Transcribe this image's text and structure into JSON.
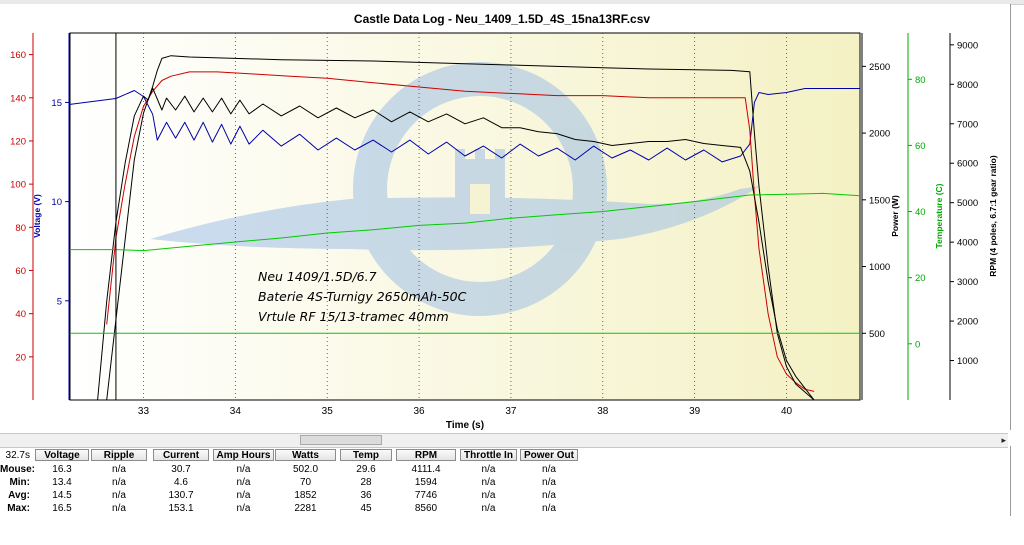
{
  "chart_data": {
    "type": "line",
    "title": "Castle Data Log - Neu_1409_1.5D_4S_15na13RF.csv",
    "xlabel": "Time (s)",
    "xlim": [
      32.2,
      40.8
    ],
    "x_ticks": [
      "33",
      "34",
      "35",
      "36",
      "37",
      "38",
      "39",
      "40"
    ],
    "cursor_x": 32.7,
    "annotation": [
      "Neu 1409/1.5D/6.7",
      "Baterie 4S-Turnigy 2650mAh-50C",
      "Vrtule RF 15/13-tramec 40mm"
    ],
    "axes": {
      "current": {
        "ylim": [
          0,
          170
        ],
        "ticks": [
          "20",
          "40",
          "60",
          "80",
          "100",
          "120",
          "140",
          "160"
        ],
        "color": "#cc0000"
      },
      "voltage": {
        "label": "Voltage (V)",
        "ylim": [
          0,
          18.5
        ],
        "ticks": [
          "5",
          "10",
          "15"
        ],
        "color": "#0000aa"
      },
      "power": {
        "label": "Power (W)",
        "ylim": [
          0,
          2750
        ],
        "ticks": [
          "500",
          "1000",
          "1500",
          "2000",
          "2500"
        ],
        "color": "#000000"
      },
      "temperature": {
        "label": "Temperature (C)",
        "ylim": [
          -17,
          94
        ],
        "ticks": [
          "0",
          "20",
          "40",
          "60",
          "80"
        ],
        "color": "#00aa00"
      },
      "rpm": {
        "label": "RPM (4 poles, 6.7:1 gear ratio)",
        "ylim": [
          0,
          9300
        ],
        "ticks": [
          "1000",
          "2000",
          "3000",
          "4000",
          "5000",
          "6000",
          "7000",
          "8000",
          "9000"
        ],
        "color": "#000000"
      }
    },
    "series": [
      {
        "axis": "voltage",
        "color": "#0000aa",
        "x": [
          32.2,
          32.7,
          32.9,
          33.0,
          33.1,
          33.15,
          33.25,
          33.35,
          33.45,
          33.55,
          33.65,
          33.75,
          33.85,
          33.95,
          34.05,
          34.15,
          34.3,
          34.5,
          34.7,
          34.9,
          35.1,
          35.3,
          35.5,
          35.7,
          35.9,
          36.1,
          36.3,
          36.5,
          36.7,
          36.9,
          37.1,
          37.3,
          37.5,
          37.7,
          37.9,
          38.1,
          38.3,
          38.5,
          38.7,
          38.9,
          39.1,
          39.3,
          39.5,
          39.6,
          39.65,
          39.7,
          39.8,
          40.0,
          40.2,
          40.4,
          40.8
        ],
        "values": [
          14.9,
          15.2,
          15.6,
          15.3,
          14.4,
          13.1,
          14.0,
          13.2,
          14.0,
          13.1,
          14.0,
          13.0,
          13.9,
          12.9,
          13.8,
          12.9,
          13.6,
          12.8,
          13.4,
          12.6,
          13.2,
          12.6,
          13.1,
          12.5,
          13.1,
          12.4,
          13.0,
          12.3,
          12.8,
          12.2,
          12.9,
          12.3,
          12.7,
          12.1,
          12.8,
          12.2,
          12.6,
          12.1,
          12.7,
          12.1,
          12.6,
          12.0,
          12.3,
          12.9,
          15.0,
          15.5,
          15.4,
          15.5,
          15.7,
          15.7,
          15.7
        ]
      },
      {
        "axis": "current",
        "color": "#cc0000",
        "x": [
          32.6,
          32.7,
          32.8,
          32.9,
          33.0,
          33.1,
          33.2,
          33.3,
          33.5,
          33.8,
          34.2,
          34.6,
          35.0,
          35.5,
          36.0,
          36.5,
          37.0,
          37.5,
          38.0,
          38.5,
          39.0,
          39.4,
          39.55,
          39.6,
          39.65,
          39.7,
          39.8,
          39.9,
          40.0,
          40.1,
          40.2,
          40.3
        ],
        "values": [
          35,
          75,
          100,
          122,
          136,
          143,
          148,
          150,
          152,
          152,
          151,
          150,
          149,
          147,
          145,
          143,
          142,
          141,
          141,
          140,
          140,
          140,
          140,
          125,
          95,
          70,
          40,
          20,
          12,
          8,
          5,
          4
        ]
      },
      {
        "axis": "power",
        "color": "#000000",
        "x": [
          32.6,
          32.7,
          32.8,
          32.9,
          33.0,
          33.1,
          33.15,
          33.2,
          33.3,
          33.5,
          34.0,
          34.5,
          35.0,
          35.5,
          36.0,
          36.5,
          37.0,
          37.5,
          38.0,
          38.5,
          39.0,
          39.4,
          39.6,
          39.65,
          39.7,
          39.8,
          39.9,
          40.0,
          40.1,
          40.2,
          40.3
        ],
        "values": [
          0,
          600,
          1200,
          1800,
          2150,
          2350,
          2470,
          2560,
          2580,
          2570,
          2560,
          2550,
          2545,
          2540,
          2530,
          2520,
          2510,
          2500,
          2490,
          2480,
          2475,
          2470,
          2460,
          2000,
          1600,
          1000,
          500,
          250,
          120,
          60,
          0
        ]
      },
      {
        "axis": "rpm",
        "color": "#000000",
        "x": [
          32.5,
          32.6,
          32.7,
          32.8,
          32.9,
          33.0,
          33.05,
          33.1,
          33.2,
          33.25,
          33.35,
          33.45,
          33.55,
          33.65,
          33.75,
          33.85,
          33.95,
          34.05,
          34.15,
          34.3,
          34.5,
          34.7,
          34.9,
          35.1,
          35.3,
          35.5,
          35.7,
          35.9,
          36.1,
          36.3,
          36.5,
          36.7,
          36.9,
          37.1,
          37.3,
          37.5,
          37.7,
          37.9,
          38.1,
          38.3,
          38.5,
          38.7,
          38.9,
          39.1,
          39.3,
          39.5,
          39.6,
          39.7,
          39.8,
          39.9,
          40.0,
          40.1,
          40.2,
          40.3
        ],
        "values": [
          0,
          2500,
          4500,
          6000,
          7200,
          7700,
          7600,
          7900,
          7350,
          7650,
          7350,
          7700,
          7300,
          7650,
          7300,
          7650,
          7250,
          7600,
          7250,
          7500,
          7200,
          7450,
          7150,
          7400,
          7150,
          7350,
          7050,
          7300,
          7050,
          7250,
          7000,
          7150,
          6900,
          6900,
          6800,
          6750,
          6600,
          6550,
          6450,
          6500,
          6550,
          6550,
          6600,
          6500,
          6450,
          6400,
          5800,
          4500,
          3000,
          1800,
          1000,
          600,
          300,
          0
        ]
      },
      {
        "axis": "temperature",
        "color": "#00cc00",
        "x": [
          32.2,
          32.7,
          33.0,
          33.5,
          34.0,
          34.5,
          35.0,
          35.5,
          36.0,
          36.5,
          37.0,
          37.5,
          38.0,
          38.5,
          39.0,
          39.3,
          39.6,
          40.0,
          40.4,
          40.8
        ],
        "values": [
          28.5,
          28.5,
          28.2,
          29.5,
          30.8,
          32.0,
          33.5,
          34.5,
          35.8,
          36.5,
          38.0,
          39.0,
          40.0,
          41.5,
          43.0,
          44.0,
          45.0,
          45.2,
          45.5,
          44.8
        ]
      },
      {
        "axis": "power",
        "color": "#00cc00",
        "x": [
          32.2,
          40.8
        ],
        "values": [
          500,
          500
        ]
      }
    ]
  },
  "stats": {
    "cursor_time": "32.7s",
    "columns": [
      "Voltage",
      "Ripple",
      "Current",
      "Amp Hours",
      "Watts",
      "Temp",
      "RPM",
      "Throttle In",
      "Power Out"
    ],
    "rows": [
      {
        "label": "Mouse:",
        "values": [
          "16.3",
          "n/a",
          "30.7",
          "n/a",
          "502.0",
          "29.6",
          "4111.4",
          "n/a",
          "n/a"
        ]
      },
      {
        "label": "Min:",
        "values": [
          "13.4",
          "n/a",
          "4.6",
          "n/a",
          "70",
          "28",
          "1594",
          "n/a",
          "n/a"
        ]
      },
      {
        "label": "Avg:",
        "values": [
          "14.5",
          "n/a",
          "130.7",
          "n/a",
          "1852",
          "36",
          "7746",
          "n/a",
          "n/a"
        ]
      },
      {
        "label": "Max:",
        "values": [
          "16.5",
          "n/a",
          "153.1",
          "n/a",
          "2281",
          "45",
          "8560",
          "n/a",
          "n/a"
        ]
      }
    ]
  },
  "scrollbar": {
    "arrow": "▸"
  }
}
